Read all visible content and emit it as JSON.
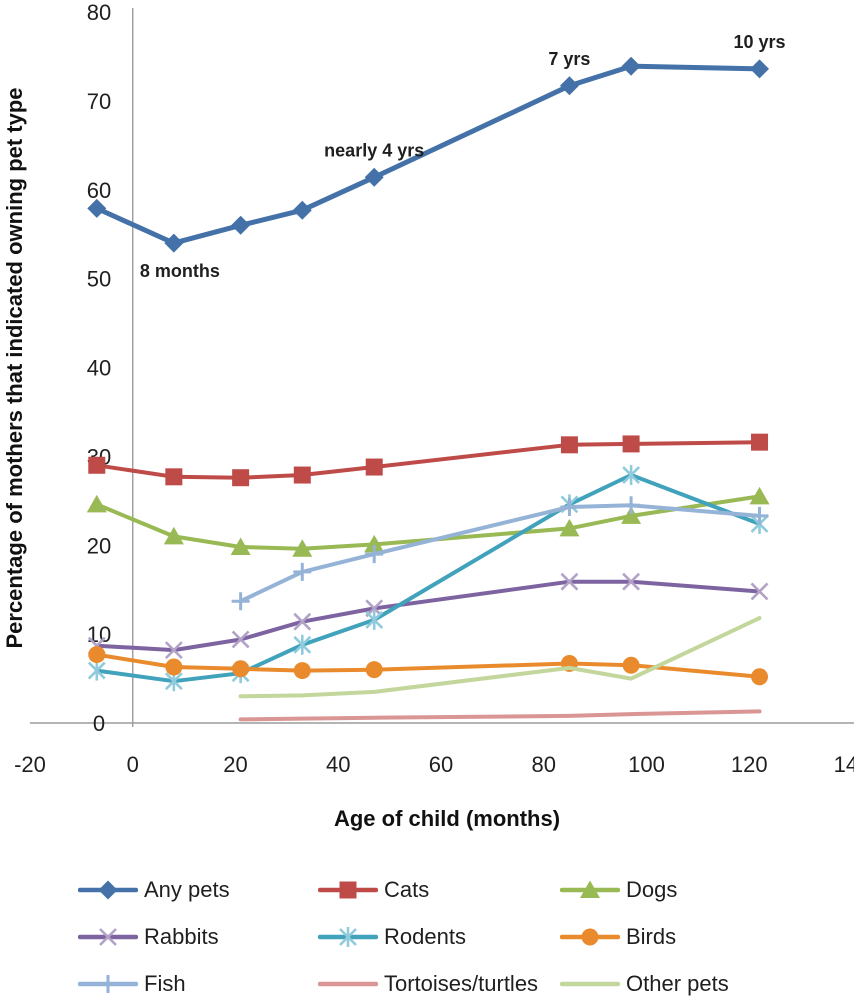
{
  "chart_data": {
    "type": "line",
    "title": "",
    "xlabel": "Age of child (months)",
    "ylabel": "Percentage of mothers that indicated owning pet type",
    "xlim": [
      -20,
      140
    ],
    "ylim": [
      0,
      80
    ],
    "x_ticks": [
      -20,
      0,
      20,
      40,
      60,
      80,
      100,
      120,
      140
    ],
    "y_ticks": [
      0,
      10,
      20,
      30,
      40,
      50,
      60,
      70,
      80
    ],
    "grid": false,
    "legend_position": "bottom",
    "x": [
      -7,
      8,
      21,
      33,
      47,
      85,
      97,
      122
    ],
    "series": [
      {
        "name": "Any pets",
        "marker": "diamond",
        "color": "#4472A8",
        "values": [
          57.9,
          54.0,
          56.0,
          57.7,
          61.4,
          71.7,
          73.9,
          73.6
        ]
      },
      {
        "name": "Cats",
        "marker": "square",
        "color": "#BE4B48",
        "values": [
          29.0,
          27.7,
          27.6,
          27.9,
          28.8,
          31.3,
          31.4,
          31.6
        ]
      },
      {
        "name": "Dogs",
        "marker": "triangle",
        "color": "#98B954",
        "values": [
          24.6,
          21.0,
          19.8,
          19.6,
          20.1,
          21.9,
          23.3,
          25.5
        ]
      },
      {
        "name": "Rabbits",
        "marker": "x",
        "color": "#7E63A1",
        "marker_color": "#B3A2C7",
        "values": [
          8.7,
          8.2,
          9.4,
          11.4,
          12.9,
          15.9,
          15.9,
          14.8
        ]
      },
      {
        "name": "Rodents",
        "marker": "asterisk",
        "color": "#41A2BC",
        "marker_color": "#8FCBDC",
        "values": [
          5.9,
          4.7,
          5.6,
          8.8,
          11.6,
          24.6,
          27.9,
          22.4
        ]
      },
      {
        "name": "Birds",
        "marker": "circle",
        "color": "#E98B2D",
        "values": [
          7.7,
          6.3,
          6.1,
          5.9,
          6.0,
          6.7,
          6.5,
          5.2
        ]
      },
      {
        "name": "Fish",
        "marker": "plus",
        "color": "#95B3D7",
        "values": [
          null,
          null,
          13.7,
          17.0,
          19.0,
          24.3,
          24.5,
          23.3
        ]
      },
      {
        "name": "Tortoises/turtles",
        "marker": "none",
        "color": "#D99694",
        "values": [
          null,
          null,
          0.4,
          0.5,
          0.6,
          0.8,
          1.0,
          1.3
        ]
      },
      {
        "name": "Other pets",
        "marker": "none",
        "color": "#C3D69B",
        "values": [
          null,
          null,
          3.0,
          3.1,
          3.5,
          6.2,
          5.0,
          11.8
        ]
      }
    ],
    "annotations": [
      {
        "text": "8 months",
        "month": 8,
        "value": 54.0,
        "placement": "below-left"
      },
      {
        "text": "nearly 4 yrs",
        "month": 47,
        "value": 61.4,
        "placement": "above"
      },
      {
        "text": "7 yrs",
        "month": 85,
        "value": 71.7,
        "placement": "above"
      },
      {
        "text": "10 yrs",
        "month": 122,
        "value": 73.6,
        "placement": "above"
      }
    ]
  }
}
